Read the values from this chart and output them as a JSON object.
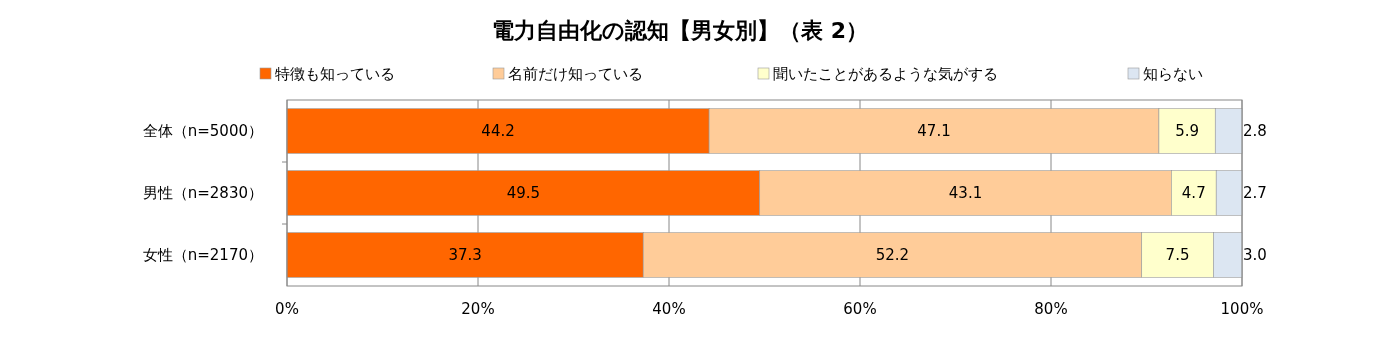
{
  "chart_data": {
    "type": "bar",
    "orientation": "horizontal",
    "stacked": true,
    "title": "電力自由化の認知【男女別】（表 2）",
    "categories": [
      "全体（n=5000）",
      "男性（n=2830）",
      "女性（n=2170）"
    ],
    "series": [
      {
        "name": "特徴も知っている",
        "color": "#ff6600",
        "values": [
          44.2,
          49.5,
          37.3
        ],
        "value_labels": [
          "44.2",
          "49.5",
          "37.3"
        ]
      },
      {
        "name": "名前だけ知っている",
        "color": "#ffcc99",
        "values": [
          47.1,
          43.1,
          52.2
        ],
        "value_labels": [
          "47.1",
          "43.1",
          "52.2"
        ]
      },
      {
        "name": "聞いたことがあるような気がする",
        "color": "#ffffcc",
        "values": [
          5.9,
          4.7,
          7.5
        ],
        "value_labels": [
          "5.9",
          "4.7",
          "7.5"
        ]
      },
      {
        "name": "知らない",
        "color": "#dce6f2",
        "values": [
          2.8,
          2.7,
          3.0
        ],
        "value_labels": [
          "2.8",
          "2.7",
          "3.0"
        ]
      }
    ],
    "xlim": [
      0,
      100
    ],
    "xticks": [
      {
        "value": 0,
        "label": "0%"
      },
      {
        "value": 20,
        "label": "20%"
      },
      {
        "value": 40,
        "label": "40%"
      },
      {
        "value": 60,
        "label": "60%"
      },
      {
        "value": 80,
        "label": "80%"
      },
      {
        "value": 100,
        "label": "100%"
      }
    ],
    "grid": "x",
    "legend": "top"
  }
}
